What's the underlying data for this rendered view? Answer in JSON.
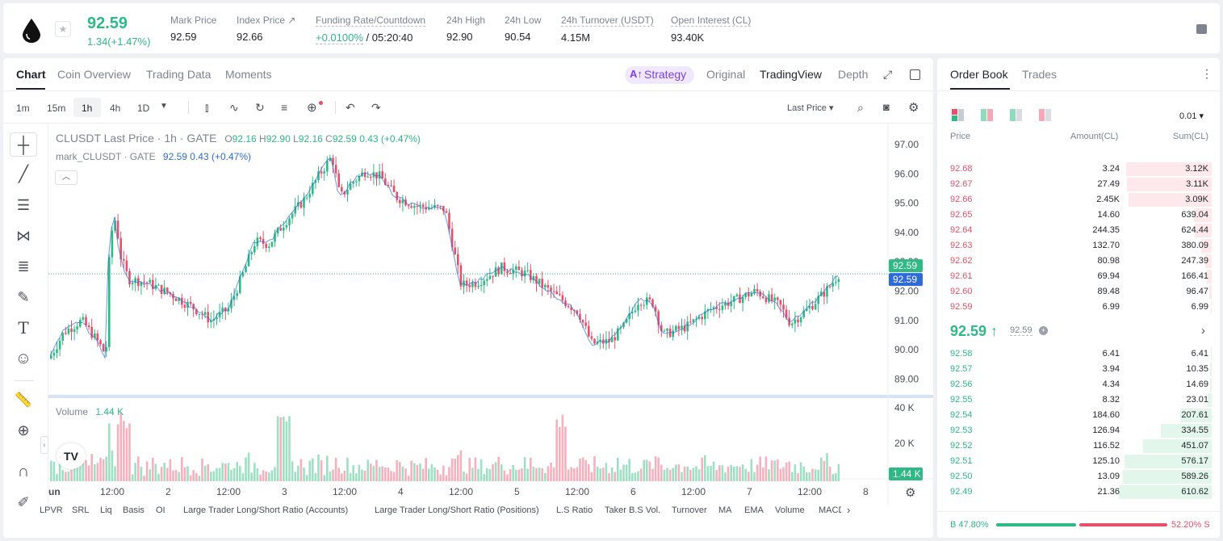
{
  "ticker": {
    "last_price": "92.59",
    "change": "1.34(+1.47%)",
    "stats": [
      {
        "label": "Mark Price",
        "value": "92.59"
      },
      {
        "label": "Index Price ↗",
        "value": "92.66"
      },
      {
        "label": "Funding Rate/Countdown",
        "value": "+0.0100%",
        "value2": "/ 05:20:40"
      },
      {
        "label": "24h High",
        "value": "92.90"
      },
      {
        "label": "24h Low",
        "value": "90.54"
      },
      {
        "label": "24h Turnover (USDT)",
        "value": "4.15M"
      },
      {
        "label": "Open Interest (CL)",
        "value": "93.40K"
      }
    ]
  },
  "chart_tabs": [
    "Chart",
    "Coin Overview",
    "Trading Data",
    "Moments"
  ],
  "view_tabs": {
    "strategy": "Strategy",
    "original": "Original",
    "tradingview": "TradingView",
    "depth": "Depth"
  },
  "toolbar": {
    "intervals": [
      "1m",
      "15m",
      "1h",
      "4h",
      "1D"
    ],
    "price_type": "Last Price ▾"
  },
  "legend": {
    "symbol": "CLUSDT Last Price · 1h · GATE",
    "o": "O",
    "ov": "92.16",
    "h": "H",
    "hv": "92.90",
    "l": "L",
    "lv": "92.16",
    "c": "C",
    "cv": "92.59",
    "chg": "0.43 (+0.47%)",
    "mark_label": "mark_CLUSDT · GATE",
    "mark_val": "92.59  0.43 (+0.47%)",
    "volume_label": "Volume",
    "volume_val": "1.44 K"
  },
  "axis": {
    "price_ticks": [
      "97.00",
      "96.00",
      "95.00",
      "94.00",
      "93.00",
      "92.00",
      "91.00",
      "90.00",
      "89.00"
    ],
    "price_tag_last": "92.59",
    "price_tag_mark": "92.59",
    "volume_ticks": [
      "40 K",
      "20 K"
    ],
    "volume_tag": "1.44 K",
    "time_ticks": [
      "un",
      "12:00",
      "2",
      "12:00",
      "3",
      "12:00",
      "4",
      "12:00",
      "5",
      "12:00",
      "6",
      "12:00",
      "7",
      "12:00",
      "8"
    ]
  },
  "indicators": [
    "LPVR",
    "SRL",
    "Liq",
    "Basis",
    "OI",
    "Large Trader Long/Short Ratio (Accounts)",
    "Large Trader Long/Short Ratio (Positions)",
    "L.S Ratio",
    "Taker B.S Vol.",
    "Turnover",
    "MA",
    "EMA",
    "Volume",
    "MACD"
  ],
  "orderbook": {
    "tabs": [
      "Order Book",
      "Trades"
    ],
    "precision": "0.01 ▾",
    "headers": [
      "Price",
      "Amount(CL)",
      "Sum(CL)"
    ],
    "asks": [
      {
        "p": "92.68",
        "a": "3.24",
        "s": "3.12K",
        "d": 0.92
      },
      {
        "p": "92.67",
        "a": "27.49",
        "s": "3.11K",
        "d": 0.91
      },
      {
        "p": "92.66",
        "a": "2.45K",
        "s": "3.09K",
        "d": 0.9
      },
      {
        "p": "92.65",
        "a": "14.60",
        "s": "639.04",
        "d": 0.19
      },
      {
        "p": "92.64",
        "a": "244.35",
        "s": "624.44",
        "d": 0.18
      },
      {
        "p": "92.63",
        "a": "132.70",
        "s": "380.09",
        "d": 0.11
      },
      {
        "p": "92.62",
        "a": "80.98",
        "s": "247.39",
        "d": 0.07
      },
      {
        "p": "92.61",
        "a": "69.94",
        "s": "166.41",
        "d": 0.05
      },
      {
        "p": "92.60",
        "a": "89.48",
        "s": "96.47",
        "d": 0.03
      },
      {
        "p": "92.59",
        "a": "6.99",
        "s": "6.99",
        "d": 0.005
      }
    ],
    "mid_price": "92.59 ↑",
    "mid_mark": "92.59",
    "bids": [
      {
        "p": "92.58",
        "a": "6.41",
        "s": "6.41",
        "d": 0.01
      },
      {
        "p": "92.57",
        "a": "3.94",
        "s": "10.35",
        "d": 0.02
      },
      {
        "p": "92.56",
        "a": "4.34",
        "s": "14.69",
        "d": 0.02
      },
      {
        "p": "92.55",
        "a": "8.32",
        "s": "23.01",
        "d": 0.04
      },
      {
        "p": "92.54",
        "a": "184.60",
        "s": "207.61",
        "d": 0.34
      },
      {
        "p": "92.53",
        "a": "126.94",
        "s": "334.55",
        "d": 0.55
      },
      {
        "p": "92.52",
        "a": "116.52",
        "s": "451.07",
        "d": 0.74
      },
      {
        "p": "92.51",
        "a": "125.10",
        "s": "576.17",
        "d": 0.94
      },
      {
        "p": "92.50",
        "a": "13.09",
        "s": "589.26",
        "d": 0.96
      },
      {
        "p": "92.49",
        "a": "21.36",
        "s": "610.62",
        "d": 1.0
      }
    ],
    "buy_ratio": "B 47.80%",
    "sell_ratio": "52.20% S",
    "buy_fraction": 0.478
  },
  "colors": {
    "up": "#2eb985",
    "down": "#e6506a",
    "mark": "#2f6bd8",
    "accent": "#7b3fe4"
  }
}
